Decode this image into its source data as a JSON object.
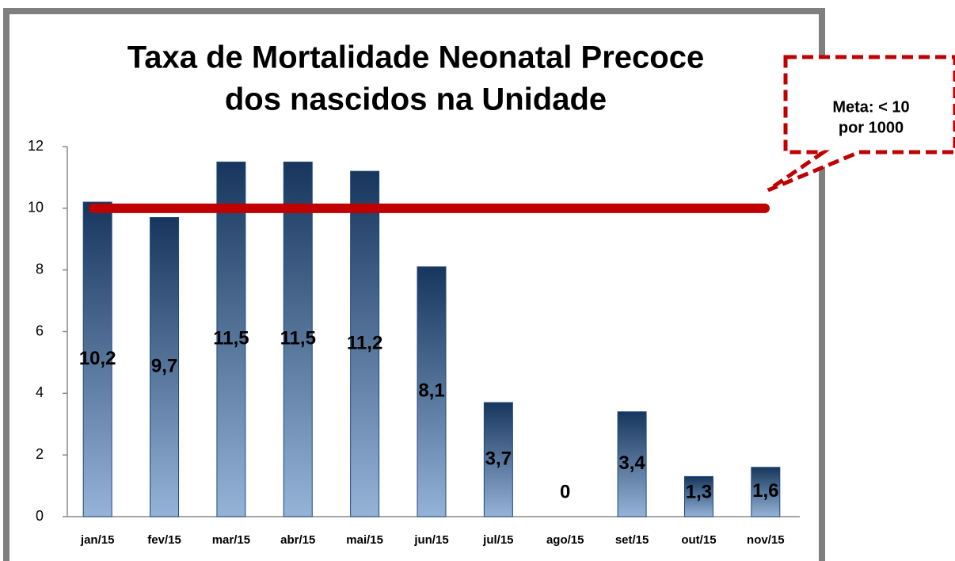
{
  "chart_data": {
    "type": "bar",
    "title": [
      "Taxa de Mortalidade Neonatal Precoce",
      "dos nascidos na Unidade"
    ],
    "categories": [
      "jan/15",
      "fev/15",
      "mar/15",
      "abr/15",
      "mai/15",
      "jun/15",
      "jul/15",
      "ago/15",
      "set/15",
      "out/15",
      "nov/15"
    ],
    "values": [
      10.2,
      9.7,
      11.5,
      11.5,
      11.2,
      8.1,
      3.7,
      0,
      3.4,
      1.3,
      1.6
    ],
    "value_labels": [
      "10,2",
      "9,7",
      "11,5",
      "11,5",
      "11,2",
      "8,1",
      "3,7",
      "0",
      "3,4",
      "1,3",
      "1,6"
    ],
    "color": "#1f497d",
    "ylim": [
      0,
      12
    ],
    "yticks": [
      0,
      2,
      4,
      6,
      8,
      10,
      12
    ],
    "grid": false,
    "reference_line": {
      "value": 10,
      "color": "#c00000"
    },
    "annotation": [
      "Meta: < 10",
      "por 1000"
    ]
  }
}
